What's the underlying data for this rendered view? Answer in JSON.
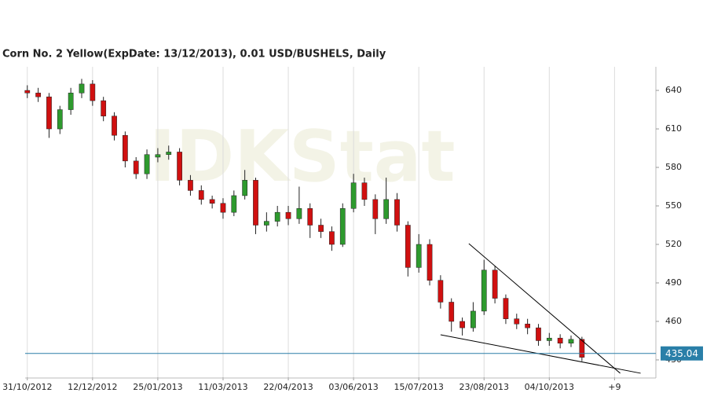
{
  "chart_data": {
    "type": "candlestick",
    "title": "Corn  No. 2 Yellow(ExpDate: 13/12/2013), 0.01 USD/BUSHELS, Daily",
    "watermark": "IDKStat",
    "x": [
      0,
      5,
      10,
      15,
      20,
      25,
      30,
      35,
      40,
      45,
      50,
      55,
      60,
      65,
      70,
      75,
      80,
      85,
      90,
      95,
      100,
      105,
      110,
      115,
      120,
      125,
      130,
      135,
      140,
      145,
      150,
      155,
      160,
      165,
      170,
      175,
      180,
      185,
      190,
      195,
      200,
      205,
      210,
      215,
      220,
      225,
      230,
      235,
      240,
      245,
      250,
      255
    ],
    "open": [
      640,
      638,
      635,
      610,
      625,
      638,
      645,
      632,
      620,
      605,
      585,
      575,
      588,
      590,
      592,
      570,
      562,
      555,
      552,
      545,
      558,
      570,
      535,
      538,
      545,
      540,
      548,
      535,
      530,
      520,
      548,
      568,
      555,
      540,
      555,
      535,
      502,
      520,
      492,
      475,
      460,
      455,
      468,
      500,
      478,
      462,
      458,
      455,
      445,
      447,
      443,
      446
    ],
    "high": [
      644,
      642,
      638,
      628,
      642,
      649,
      648,
      635,
      623,
      608,
      588,
      594,
      595,
      597,
      595,
      574,
      566,
      558,
      556,
      562,
      578,
      572,
      545,
      550,
      550,
      565,
      552,
      540,
      534,
      552,
      575,
      572,
      559,
      572,
      560,
      538,
      528,
      524,
      496,
      478,
      463,
      475,
      508,
      503,
      481,
      466,
      462,
      458,
      451,
      450,
      449,
      448
    ],
    "low": [
      634,
      631,
      603,
      606,
      621,
      634,
      628,
      616,
      601,
      580,
      571,
      571,
      584,
      586,
      566,
      558,
      551,
      548,
      540,
      542,
      555,
      528,
      530,
      534,
      535,
      536,
      525,
      525,
      515,
      518,
      545,
      550,
      528,
      536,
      530,
      495,
      498,
      488,
      470,
      452,
      449,
      452,
      465,
      474,
      458,
      454,
      450,
      441,
      441,
      439,
      440,
      429
    ],
    "close": [
      638,
      635,
      610,
      625,
      638,
      645,
      632,
      620,
      605,
      585,
      575,
      590,
      590,
      592,
      570,
      562,
      555,
      552,
      545,
      558,
      570,
      535,
      538,
      545,
      540,
      548,
      535,
      530,
      520,
      548,
      568,
      555,
      540,
      555,
      535,
      502,
      520,
      492,
      475,
      460,
      455,
      468,
      500,
      478,
      462,
      458,
      455,
      445,
      447,
      443,
      446,
      432
    ],
    "up_color": "#2e9a2e",
    "down_color": "#d01010",
    "xlim": [
      -1,
      289
    ],
    "ylim": [
      416.5,
      658.4
    ],
    "xticks": [
      {
        "value": 0,
        "label": "31/10/2012"
      },
      {
        "value": 30,
        "label": "12/12/2012"
      },
      {
        "value": 60,
        "label": "25/01/2013"
      },
      {
        "value": 90,
        "label": "11/03/2013"
      },
      {
        "value": 120,
        "label": "22/04/2013"
      },
      {
        "value": 150,
        "label": "03/06/2013"
      },
      {
        "value": 180,
        "label": "15/07/2013"
      },
      {
        "value": 210,
        "label": "23/08/2013"
      },
      {
        "value": 240,
        "label": "04/10/2013"
      },
      {
        "value": 270,
        "label": "+9"
      }
    ],
    "yticks": [
      430,
      460,
      490,
      520,
      550,
      580,
      610,
      640
    ],
    "grid": "x",
    "last_price": 435.04,
    "last_price_color": "#2a7fa8",
    "trendlines": [
      {
        "x": [
          203,
          272.6
        ],
        "y": [
          520.6,
          419.6
        ]
      },
      {
        "x": [
          190,
          282
        ],
        "y": [
          449.6,
          419.6
        ]
      }
    ]
  }
}
